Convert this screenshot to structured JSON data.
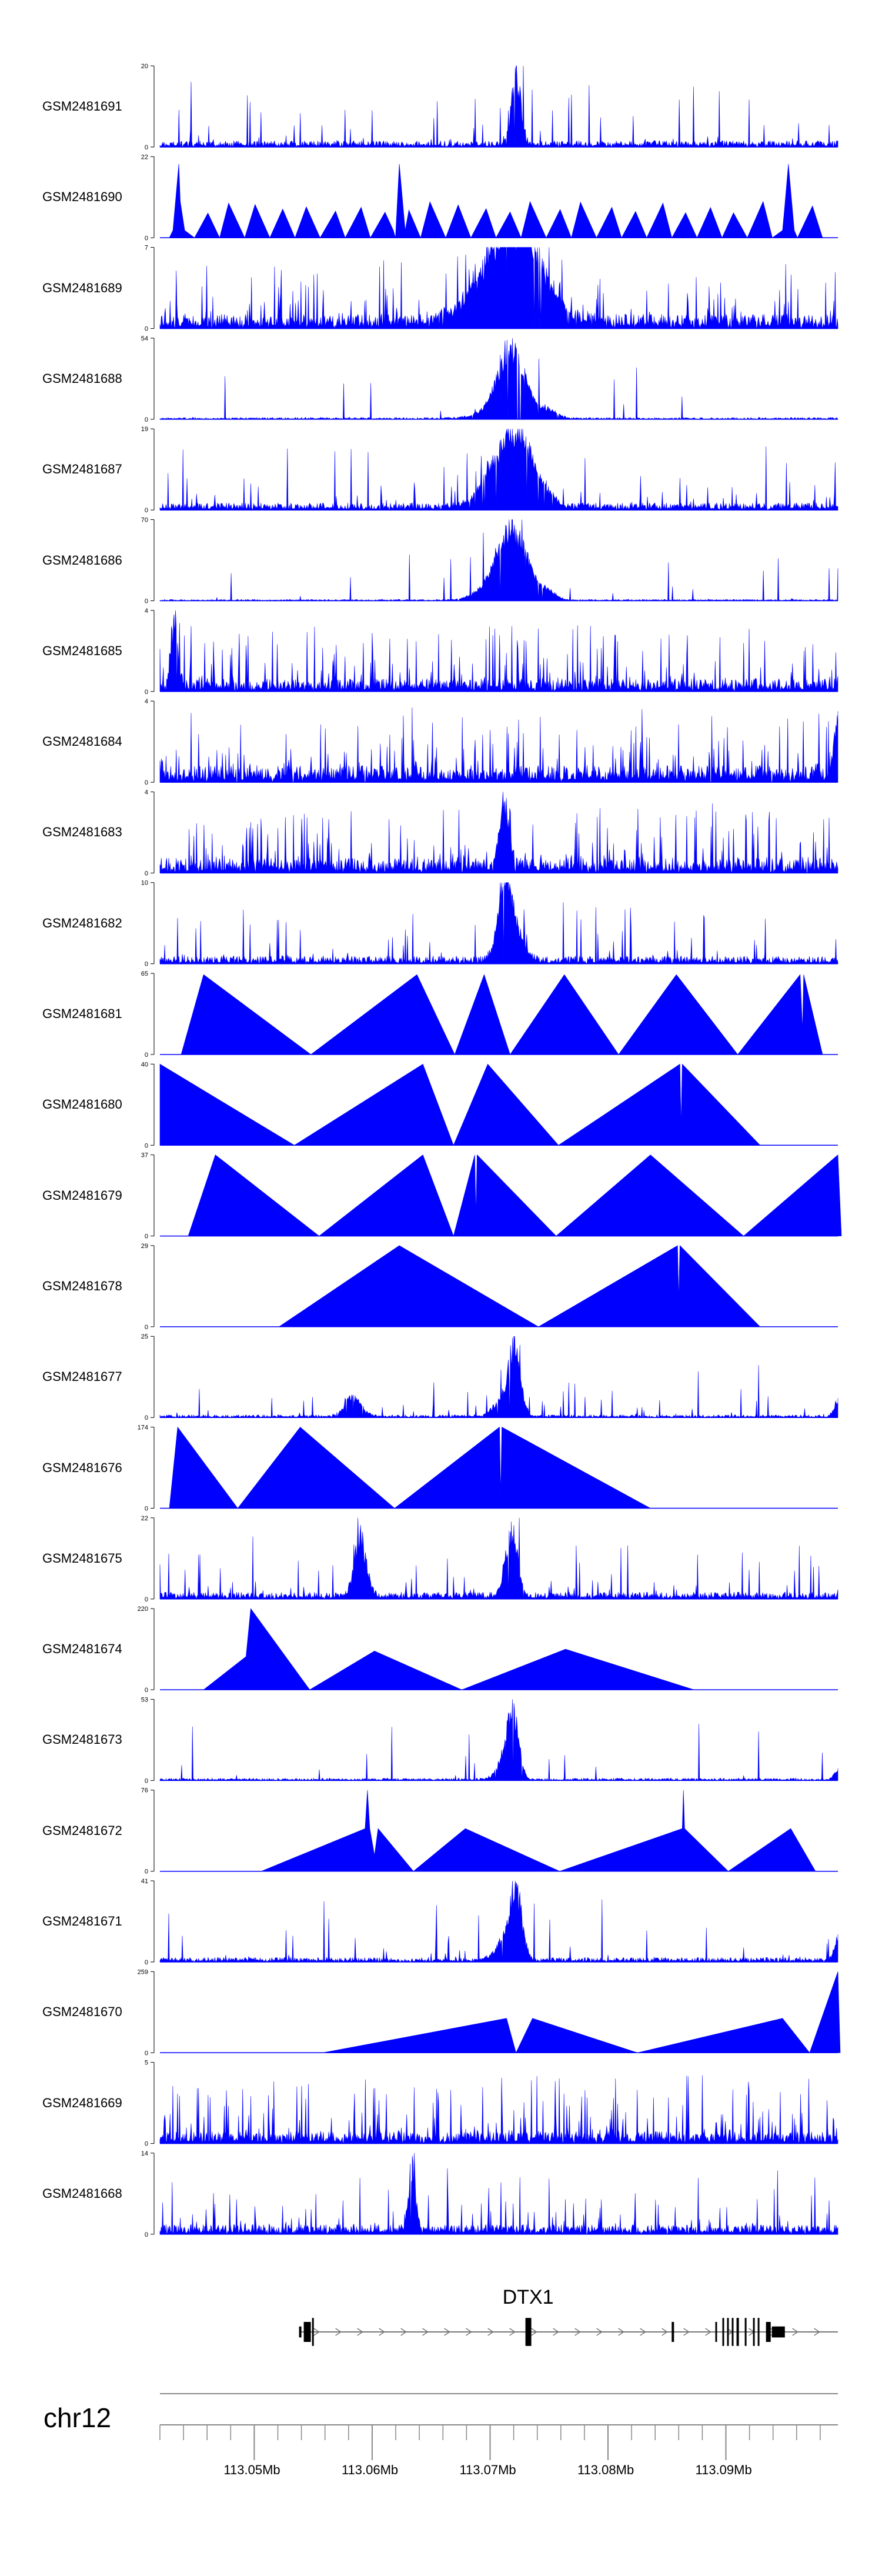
{
  "chart_data": {
    "type": "area",
    "chromosome": "chr12",
    "x_range_mb": [
      113.042,
      113.0995
    ],
    "ylim_min": 0,
    "color": "#0000FF",
    "tracks": [
      {
        "name": "GSM2481691",
        "ymax": "20",
        "style": "noise",
        "baseline": 1.5,
        "spikes": 0.18,
        "peaks": [
          [
            113.0722,
            20,
            0.0004
          ]
        ]
      },
      {
        "name": "GSM2481690",
        "ymax": "22",
        "style": "triangles",
        "start": 113.0428,
        "end": 113.0982,
        "n": 26,
        "peaks": [
          [
            113.0436,
            20,
            0.0005
          ],
          [
            113.0623,
            20,
            0.0005
          ],
          [
            113.0953,
            20,
            0.0005
          ]
        ]
      },
      {
        "name": "GSM2481689",
        "ymax": "7",
        "style": "noise",
        "baseline": 1.2,
        "spikes": 0.35,
        "peaks": [
          [
            113.0714,
            4.5,
            0.0028
          ],
          [
            113.0722,
            6.5,
            0.002
          ]
        ]
      },
      {
        "name": "GSM2481688",
        "ymax": "54",
        "style": "noise",
        "baseline": 1.2,
        "spikes": 0.05,
        "peaks": [
          [
            113.0709,
            10,
            0.0015
          ],
          [
            113.0717,
            48,
            0.001
          ],
          [
            113.0729,
            9,
            0.0006
          ],
          [
            113.0746,
            8,
            0.0009
          ]
        ]
      },
      {
        "name": "GSM2481687",
        "ymax": "19",
        "style": "noise",
        "baseline": 1.6,
        "spikes": 0.2,
        "peaks": [
          [
            113.0709,
            8,
            0.0015
          ],
          [
            113.0719,
            13,
            0.0015
          ],
          [
            113.0731,
            6,
            0.0008
          ],
          [
            113.0748,
            3,
            0.0007
          ]
        ]
      },
      {
        "name": "GSM2481686",
        "ymax": "70",
        "style": "noise",
        "baseline": 1.2,
        "spikes": 0.05,
        "peaks": [
          [
            113.0708,
            20,
            0.0015
          ],
          [
            113.0718,
            55,
            0.0011
          ],
          [
            113.073,
            14,
            0.0008
          ],
          [
            113.0748,
            10,
            0.0007
          ]
        ]
      },
      {
        "name": "GSM2481685",
        "ymax": "4",
        "style": "noise",
        "baseline": 0.6,
        "spikes": 0.55,
        "peaks": [
          [
            113.0432,
            3.8,
            0.0003
          ]
        ]
      },
      {
        "name": "GSM2481684",
        "ymax": "4",
        "style": "noise",
        "baseline": 0.8,
        "spikes": 0.45,
        "peaks": [
          [
            113.0995,
            3.5,
            0.0003
          ]
        ]
      },
      {
        "name": "GSM2481683",
        "ymax": "4",
        "style": "noise",
        "baseline": 0.7,
        "spikes": 0.5,
        "peaks": [
          [
            113.0712,
            3.5,
            0.0004
          ]
        ]
      },
      {
        "name": "GSM2481682",
        "ymax": "10",
        "style": "noise",
        "baseline": 0.9,
        "spikes": 0.2,
        "peaks": [
          [
            113.0712,
            9.5,
            0.0005
          ],
          [
            113.0718,
            6,
            0.0008
          ]
        ]
      },
      {
        "name": "GSM2481681",
        "ymax": "65",
        "style": "points",
        "points": [
          [
            113.0438,
            0
          ],
          [
            113.0457,
            64
          ],
          [
            113.0548,
            0
          ],
          [
            113.0638,
            64
          ],
          [
            113.067,
            0
          ],
          [
            113.0695,
            64
          ],
          [
            113.0717,
            0
          ],
          [
            113.0763,
            64
          ],
          [
            113.0809,
            0
          ],
          [
            113.0858,
            64
          ],
          [
            113.091,
            0
          ],
          [
            113.0963,
            64
          ],
          [
            113.0965,
            20
          ],
          [
            113.0966,
            64
          ],
          [
            113.0982,
            0
          ]
        ]
      },
      {
        "name": "GSM2481680",
        "ymax": "40",
        "style": "points",
        "points": [
          [
            113.042,
            40
          ],
          [
            113.0534,
            0
          ],
          [
            113.0643,
            40
          ],
          [
            113.0669,
            0
          ],
          [
            113.0698,
            40
          ],
          [
            113.0758,
            0
          ],
          [
            113.0861,
            40
          ],
          [
            113.0862,
            10
          ],
          [
            113.0863,
            40
          ],
          [
            113.0929,
            0
          ]
        ]
      },
      {
        "name": "GSM2481679",
        "ymax": "37",
        "style": "points",
        "points": [
          [
            113.0444,
            0
          ],
          [
            113.0467,
            37
          ],
          [
            113.0555,
            0
          ],
          [
            113.0643,
            37
          ],
          [
            113.0669,
            0
          ],
          [
            113.0687,
            37
          ],
          [
            113.0688,
            10
          ],
          [
            113.0689,
            37
          ],
          [
            113.0756,
            0
          ],
          [
            113.0836,
            37
          ],
          [
            113.0915,
            0
          ],
          [
            113.0995,
            37
          ],
          [
            113.0998,
            0
          ]
        ]
      },
      {
        "name": "GSM2481678",
        "ymax": "29",
        "style": "points",
        "points": [
          [
            113.0521,
            0
          ],
          [
            113.0623,
            29
          ],
          [
            113.0741,
            0
          ],
          [
            113.0859,
            29
          ],
          [
            113.086,
            10
          ],
          [
            113.0861,
            29
          ],
          [
            113.0929,
            0
          ]
        ]
      },
      {
        "name": "GSM2481677",
        "ymax": "25",
        "style": "noise",
        "baseline": 0.8,
        "spikes": 0.1,
        "peaks": [
          [
            113.0584,
            7,
            0.0007
          ],
          [
            113.0711,
            6,
            0.0008
          ],
          [
            113.0721,
            24,
            0.0005
          ],
          [
            113.0995,
            6,
            0.0003
          ]
        ]
      },
      {
        "name": "GSM2481676",
        "ymax": "174",
        "style": "points",
        "points": [
          [
            113.0428,
            0
          ],
          [
            113.0435,
            174
          ],
          [
            113.0486,
            0
          ],
          [
            113.0539,
            174
          ],
          [
            113.0619,
            0
          ],
          [
            113.0708,
            174
          ],
          [
            113.0709,
            30
          ],
          [
            113.071,
            174
          ],
          [
            113.0836,
            0
          ]
        ]
      },
      {
        "name": "GSM2481675",
        "ymax": "22",
        "style": "noise",
        "baseline": 1.8,
        "spikes": 0.2,
        "peaks": [
          [
            113.059,
            19,
            0.0005
          ],
          [
            113.0718,
            21,
            0.0005
          ]
        ]
      },
      {
        "name": "GSM2481674",
        "ymax": "220",
        "style": "points",
        "points": [
          [
            113.0457,
            0
          ],
          [
            113.0493,
            90
          ],
          [
            113.0497,
            220
          ],
          [
            113.0547,
            0
          ],
          [
            113.0602,
            105
          ],
          [
            113.0676,
            0
          ],
          [
            113.0764,
            110
          ],
          [
            113.0873,
            0
          ]
        ]
      },
      {
        "name": "GSM2481673",
        "ymax": "53",
        "style": "noise",
        "baseline": 1.5,
        "spikes": 0.06,
        "peaks": [
          [
            113.0719,
            52,
            0.0005
          ],
          [
            113.0713,
            12,
            0.0007
          ],
          [
            113.0995,
            8,
            0.0003
          ]
        ]
      },
      {
        "name": "GSM2481672",
        "ymax": "76",
        "style": "points",
        "points": [
          [
            113.0506,
            0
          ],
          [
            113.0594,
            40
          ],
          [
            113.0596,
            76
          ],
          [
            113.0598,
            40
          ],
          [
            113.0602,
            15
          ],
          [
            113.0605,
            40
          ],
          [
            113.0635,
            0
          ],
          [
            113.0679,
            40
          ],
          [
            113.0759,
            0
          ],
          [
            113.0863,
            40
          ],
          [
            113.0864,
            76
          ],
          [
            113.0865,
            40
          ],
          [
            113.0902,
            0
          ],
          [
            113.0955,
            40
          ],
          [
            113.0976,
            0
          ]
        ]
      },
      {
        "name": "GSM2481671",
        "ymax": "41",
        "style": "noise",
        "baseline": 2.2,
        "spikes": 0.1,
        "peaks": [
          [
            113.0722,
            40,
            0.0005
          ],
          [
            113.0712,
            12,
            0.0007
          ],
          [
            113.0995,
            14,
            0.0003
          ]
        ]
      },
      {
        "name": "GSM2481670",
        "ymax": "259",
        "style": "points",
        "points": [
          [
            113.0558,
            0
          ],
          [
            113.0714,
            110
          ],
          [
            113.0722,
            0
          ],
          [
            113.0736,
            110
          ],
          [
            113.0825,
            0
          ],
          [
            113.0948,
            110
          ],
          [
            113.0971,
            0
          ],
          [
            113.0995,
            259
          ],
          [
            113.0997,
            0
          ]
        ]
      },
      {
        "name": "GSM2481669",
        "ymax": "5",
        "style": "noise",
        "baseline": 0.7,
        "spikes": 0.6,
        "peaks": []
      },
      {
        "name": "GSM2481668",
        "ymax": "14",
        "style": "noise",
        "baseline": 1.6,
        "spikes": 0.25,
        "peaks": [
          [
            113.0634,
            13.5,
            0.0003
          ]
        ]
      }
    ],
    "gene": {
      "name": "DTX1",
      "strand": "+",
      "start_mb": 113.0538,
      "end_mb": 113.0995,
      "exons": [
        [
          113.0538,
          113.054,
          0.55
        ],
        [
          113.0542,
          113.0548,
          1.0
        ],
        [
          113.0549,
          113.055,
          1.4
        ],
        [
          113.073,
          113.0735,
          1.4
        ],
        [
          113.0854,
          113.0856,
          1.0
        ],
        [
          113.0891,
          113.0892,
          1.0
        ],
        [
          113.0897,
          113.0898,
          1.4
        ],
        [
          113.0901,
          113.0902,
          1.4
        ],
        [
          113.0905,
          113.0906,
          1.4
        ],
        [
          113.0909,
          113.0911,
          1.4
        ],
        [
          113.0916,
          113.0917,
          1.4
        ],
        [
          113.0923,
          113.0924,
          1.4
        ],
        [
          113.0927,
          113.0928,
          1.4
        ],
        [
          113.0934,
          113.0938,
          1.0
        ],
        [
          113.0939,
          113.095,
          0.55
        ]
      ]
    },
    "axis": {
      "tick_labels": [
        "113.05Mb",
        "113.06Mb",
        "113.07Mb",
        "113.08Mb",
        "113.09Mb"
      ],
      "tick_values": [
        113.05,
        113.06,
        113.07,
        113.08,
        113.09
      ],
      "minor_step_mb": 0.002
    }
  }
}
